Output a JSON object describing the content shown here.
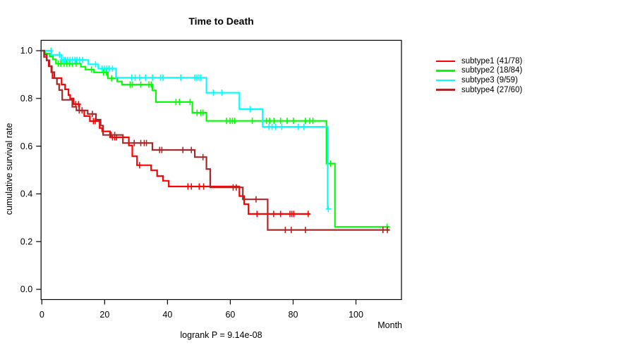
{
  "window": {
    "background": "#FFFFFF",
    "text_color": "#000000"
  },
  "chart_data": {
    "type": "line",
    "variant": "kaplan-meier-survival-step",
    "title": "Time to Death",
    "xlabel": "Month",
    "ylabel": "cumulative survival rate",
    "annotation": "logrank P = 9.14e-08",
    "x_ticks": [
      0,
      20,
      40,
      60,
      80,
      100
    ],
    "y_ticks": [
      1.0,
      0.8,
      0.6,
      0.4,
      0.2,
      0.0
    ],
    "xlim": [
      0,
      114
    ],
    "ylim": [
      0,
      1
    ],
    "grid": false,
    "legend_position": "right",
    "axis_color": "#000000",
    "series": [
      {
        "name": "subtype1",
        "label": "subtype1 (41/78)",
        "events": 41,
        "total": 78,
        "color": "#FF0000",
        "end_month": 85.4,
        "steps": [
          [
            0,
            1.0
          ],
          [
            0.7,
            0.974
          ],
          [
            1.5,
            0.96
          ],
          [
            2.2,
            0.935
          ],
          [
            3,
            0.91
          ],
          [
            3.4,
            0.885
          ],
          [
            6.3,
            0.858
          ],
          [
            7.4,
            0.838
          ],
          [
            8.5,
            0.814
          ],
          [
            9,
            0.8
          ],
          [
            10.1,
            0.776
          ],
          [
            11.9,
            0.749
          ],
          [
            13.5,
            0.726
          ],
          [
            15.3,
            0.705
          ],
          [
            18.4,
            0.676
          ],
          [
            19.2,
            0.662
          ],
          [
            21.7,
            0.637
          ],
          [
            27.7,
            0.603
          ],
          [
            28.8,
            0.558
          ],
          [
            30.3,
            0.52
          ],
          [
            34.8,
            0.499
          ],
          [
            36.7,
            0.475
          ],
          [
            38.6,
            0.455
          ],
          [
            40.4,
            0.431
          ],
          [
            62.9,
            0.391
          ],
          [
            64.4,
            0.357
          ],
          [
            65.8,
            0.316
          ]
        ],
        "censor_marks": [
          10.8,
          11.7,
          16.4,
          17.0,
          22.5,
          23.2,
          23.8,
          31.1,
          46.5,
          47.6,
          50.1,
          51.5,
          68.5,
          73.8,
          76,
          79,
          79.6,
          80.2,
          84.8
        ]
      },
      {
        "name": "subtype2",
        "label": "subtype2 (18/84)",
        "events": 18,
        "total": 84,
        "color": "#00FF00",
        "end_month": 110.8,
        "steps": [
          [
            0,
            1.0
          ],
          [
            1,
            0.988
          ],
          [
            2.5,
            0.976
          ],
          [
            3.5,
            0.964
          ],
          [
            4.5,
            0.946
          ],
          [
            12.4,
            0.933
          ],
          [
            13.9,
            0.921
          ],
          [
            16.6,
            0.909
          ],
          [
            21,
            0.884
          ],
          [
            24,
            0.871
          ],
          [
            25.5,
            0.858
          ],
          [
            35.2,
            0.834
          ],
          [
            36.3,
            0.785
          ],
          [
            47.9,
            0.74
          ],
          [
            52.4,
            0.706
          ],
          [
            90.6,
            0.527
          ],
          [
            93.3,
            0.262
          ]
        ],
        "censor_marks": [
          5.2,
          6,
          7.1,
          7.9,
          8.8,
          9.7,
          10.9,
          15.8,
          19.6,
          20.5,
          22.2,
          28.1,
          28.8,
          31.5,
          34.1,
          34.8,
          42.7,
          43.8,
          47.2,
          49.4,
          50.6,
          51.3,
          58.8,
          59.9,
          60.7,
          61.4,
          67,
          71.5,
          72.5,
          73.9,
          76,
          78.1,
          80.1,
          83.9,
          85.3,
          86.3,
          91.9,
          109.9
        ]
      },
      {
        "name": "subtype3",
        "label": "subtype3 (9/59)",
        "events": 9,
        "total": 59,
        "color": "#00FFFF",
        "end_month": 91.5,
        "steps": [
          [
            0,
            1.0
          ],
          [
            3,
            0.983
          ],
          [
            6.3,
            0.961
          ],
          [
            14.8,
            0.943
          ],
          [
            18,
            0.925
          ],
          [
            23.6,
            0.887
          ],
          [
            52.4,
            0.824
          ],
          [
            62.9,
            0.755
          ],
          [
            70.3,
            0.681
          ],
          [
            91,
            0.337
          ]
        ],
        "censor_marks": [
          2.9,
          5.6,
          6.4,
          7,
          7.5,
          8.2,
          9,
          9.7,
          10.5,
          11.2,
          12,
          13,
          17.1,
          19.2,
          19.9,
          20.7,
          21.4,
          22.5,
          28.6,
          29.7,
          31.1,
          33,
          35.2,
          37.8,
          38.6,
          44.2,
          48.7,
          49.4,
          50,
          50.6,
          54.6,
          57.3,
          66.3,
          72.3,
          73.3,
          74.4,
          76.4,
          81.6,
          83.4,
          91.2
        ]
      },
      {
        "name": "subtype4",
        "label": "subtype4 (27/60)",
        "events": 27,
        "total": 60,
        "color": "#A52A2A",
        "end_month": 110.8,
        "steps": [
          [
            0,
            1.0
          ],
          [
            0.8,
            0.983
          ],
          [
            1.6,
            0.96
          ],
          [
            2.4,
            0.935
          ],
          [
            3.2,
            0.91
          ],
          [
            4,
            0.885
          ],
          [
            4.8,
            0.86
          ],
          [
            5.5,
            0.835
          ],
          [
            6.5,
            0.794
          ],
          [
            9.7,
            0.765
          ],
          [
            11,
            0.75
          ],
          [
            14.6,
            0.735
          ],
          [
            17.2,
            0.711
          ],
          [
            18.7,
            0.686
          ],
          [
            19.5,
            0.647
          ],
          [
            25.8,
            0.613
          ],
          [
            35.2,
            0.584
          ],
          [
            48.7,
            0.554
          ],
          [
            52.4,
            0.504
          ],
          [
            53.6,
            0.427
          ],
          [
            64,
            0.377
          ],
          [
            71.9,
            0.249
          ]
        ],
        "censor_marks": [
          11.9,
          12.8,
          16.1,
          22.1,
          23.2,
          29.4,
          31.5,
          32.6,
          33.3,
          37.5,
          38.2,
          44.9,
          47.6,
          51.3,
          60.9,
          61.9,
          68.2,
          77.5,
          79.4,
          83.9,
          108.6,
          110
        ]
      }
    ]
  }
}
